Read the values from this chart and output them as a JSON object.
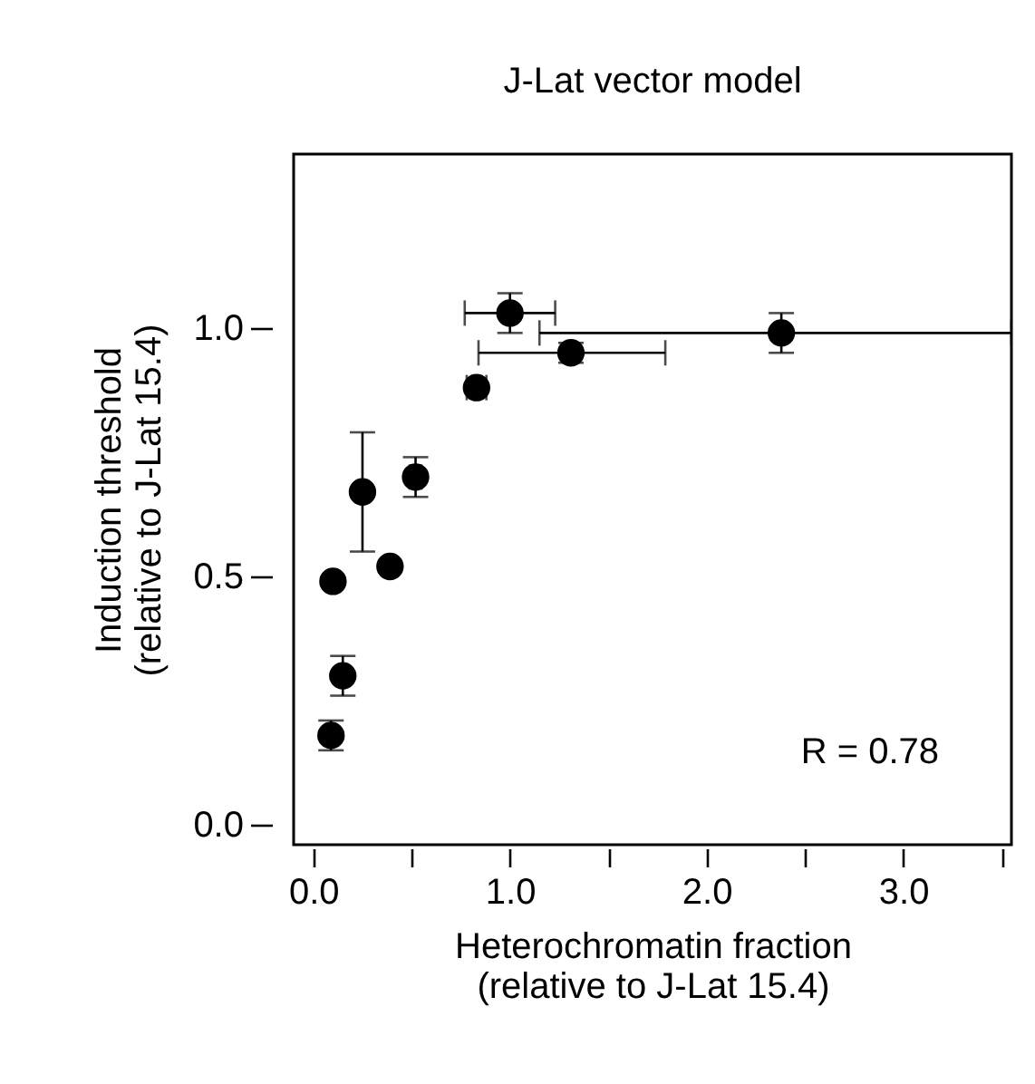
{
  "chart_data": {
    "type": "scatter",
    "title": "J-Lat vector model",
    "xlabel": "Heterochromatin fraction\n(relative to J-Lat 15.4)",
    "ylabel": "Induction threshold\n(relative to J-Lat 15.4)",
    "x": [
      0.09,
      0.15,
      0.1,
      0.25,
      0.39,
      0.52,
      0.83,
      1.0,
      1.31,
      2.38
    ],
    "series": [
      {
        "color": "#000000",
        "values": [
          0.18,
          0.3,
          0.49,
          0.67,
          0.52,
          0.7,
          0.88,
          1.03,
          0.95,
          0.99
        ],
        "errors": [
          0.03,
          0.04,
          null,
          0.12,
          null,
          0.04,
          null,
          0.04,
          0.02,
          0.04
        ],
        "xerrors": [
          null,
          null,
          null,
          null,
          null,
          0.03,
          0.05,
          [
            0.77,
            1.23
          ],
          [
            0.84,
            1.79
          ],
          [
            1.15,
            3.55
          ]
        ]
      }
    ],
    "xlim": [
      -0.1,
      3.55
    ],
    "ylim": [
      -0.04,
      1.35
    ],
    "xticks": [
      {
        "value": 0,
        "label": "0.0"
      },
      {
        "value": 0.5,
        "label": null
      },
      {
        "value": 1,
        "label": "1.0"
      },
      {
        "value": 1.5,
        "label": null
      },
      {
        "value": 2,
        "label": "2.0"
      },
      {
        "value": 2.5,
        "label": null
      },
      {
        "value": 3,
        "label": "3.0"
      },
      {
        "value": 3.5,
        "label": null
      }
    ],
    "yticks": [
      {
        "value": 0,
        "label": "0.0"
      },
      {
        "value": 0.5,
        "label": "0.5"
      },
      {
        "value": 1,
        "label": "1.0"
      }
    ],
    "marker": "circle",
    "grid": false,
    "annotations": [
      "R = 0.78"
    ]
  }
}
